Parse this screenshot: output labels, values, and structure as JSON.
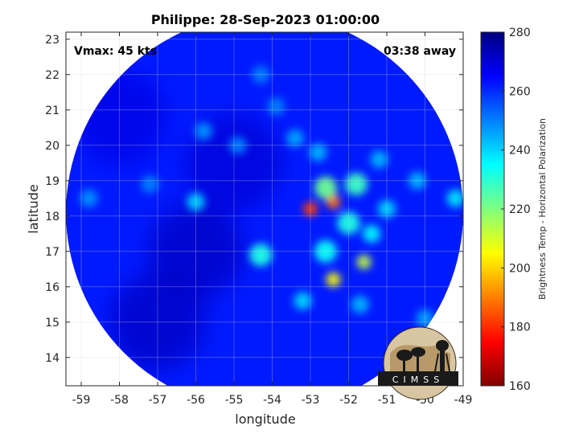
{
  "title": "Philippe: 28-Sep-2023 01:00:00",
  "annotations": {
    "vmax": "Vmax: 45 kts",
    "time_away": "03:38 away"
  },
  "axes": {
    "xlabel": "longitude",
    "ylabel": "latitude",
    "xticks": [
      -59,
      -58,
      -57,
      -56,
      -55,
      -54,
      -53,
      -52,
      -51,
      -50,
      -49
    ],
    "yticks": [
      14,
      15,
      16,
      17,
      18,
      19,
      20,
      21,
      22,
      23
    ],
    "xlim": [
      -59.4,
      -49
    ],
    "ylim": [
      13.2,
      23.2
    ],
    "grid": true
  },
  "colorbar": {
    "label": "Brightness Temp - Horizontal Polarization",
    "ticks": [
      160,
      180,
      200,
      220,
      240,
      260,
      280
    ],
    "range": [
      160,
      280
    ],
    "colormap": "jet"
  },
  "swath": {
    "center_lon": -54.2,
    "center_lat": 18.1,
    "background_temp": 262
  },
  "features": [
    {
      "lon": -53.0,
      "lat": 18.2,
      "temp": 182
    },
    {
      "lon": -52.4,
      "lat": 18.4,
      "temp": 188
    },
    {
      "lon": -52.4,
      "lat": 16.2,
      "temp": 205
    },
    {
      "lon": -51.6,
      "lat": 16.7,
      "temp": 212
    },
    {
      "lon": -52.6,
      "lat": 18.8,
      "temp": 222
    },
    {
      "lon": -51.8,
      "lat": 18.9,
      "temp": 228
    },
    {
      "lon": -52.0,
      "lat": 17.8,
      "temp": 232
    },
    {
      "lon": -51.4,
      "lat": 17.5,
      "temp": 236
    },
    {
      "lon": -52.6,
      "lat": 17.0,
      "temp": 234
    },
    {
      "lon": -51.0,
      "lat": 18.2,
      "temp": 240
    },
    {
      "lon": -52.8,
      "lat": 19.8,
      "temp": 244
    },
    {
      "lon": -53.4,
      "lat": 20.2,
      "temp": 246
    },
    {
      "lon": -51.2,
      "lat": 19.6,
      "temp": 244
    },
    {
      "lon": -49.2,
      "lat": 18.5,
      "temp": 238
    },
    {
      "lon": -53.2,
      "lat": 15.6,
      "temp": 240
    },
    {
      "lon": -51.7,
      "lat": 15.5,
      "temp": 244
    },
    {
      "lon": -54.3,
      "lat": 16.9,
      "temp": 232
    },
    {
      "lon": -55.8,
      "lat": 20.4,
      "temp": 248
    },
    {
      "lon": -54.9,
      "lat": 20.0,
      "temp": 250
    },
    {
      "lon": -53.9,
      "lat": 21.1,
      "temp": 250
    },
    {
      "lon": -54.3,
      "lat": 22.0,
      "temp": 250
    },
    {
      "lon": -58.8,
      "lat": 18.5,
      "temp": 248
    },
    {
      "lon": -57.2,
      "lat": 18.9,
      "temp": 250
    },
    {
      "lon": -56.0,
      "lat": 18.4,
      "temp": 240
    },
    {
      "lon": -50.2,
      "lat": 19.0,
      "temp": 244
    },
    {
      "lon": -50.0,
      "lat": 15.1,
      "temp": 246
    }
  ],
  "cold_regions": [
    {
      "lon": -56.0,
      "lat": 17.0,
      "temp": 272
    },
    {
      "lon": -57.0,
      "lat": 15.0,
      "temp": 272
    },
    {
      "lon": -55.0,
      "lat": 19.5,
      "temp": 270
    },
    {
      "lon": -58.0,
      "lat": 20.8,
      "temp": 268
    }
  ],
  "logo": {
    "text": "CIMSS"
  }
}
